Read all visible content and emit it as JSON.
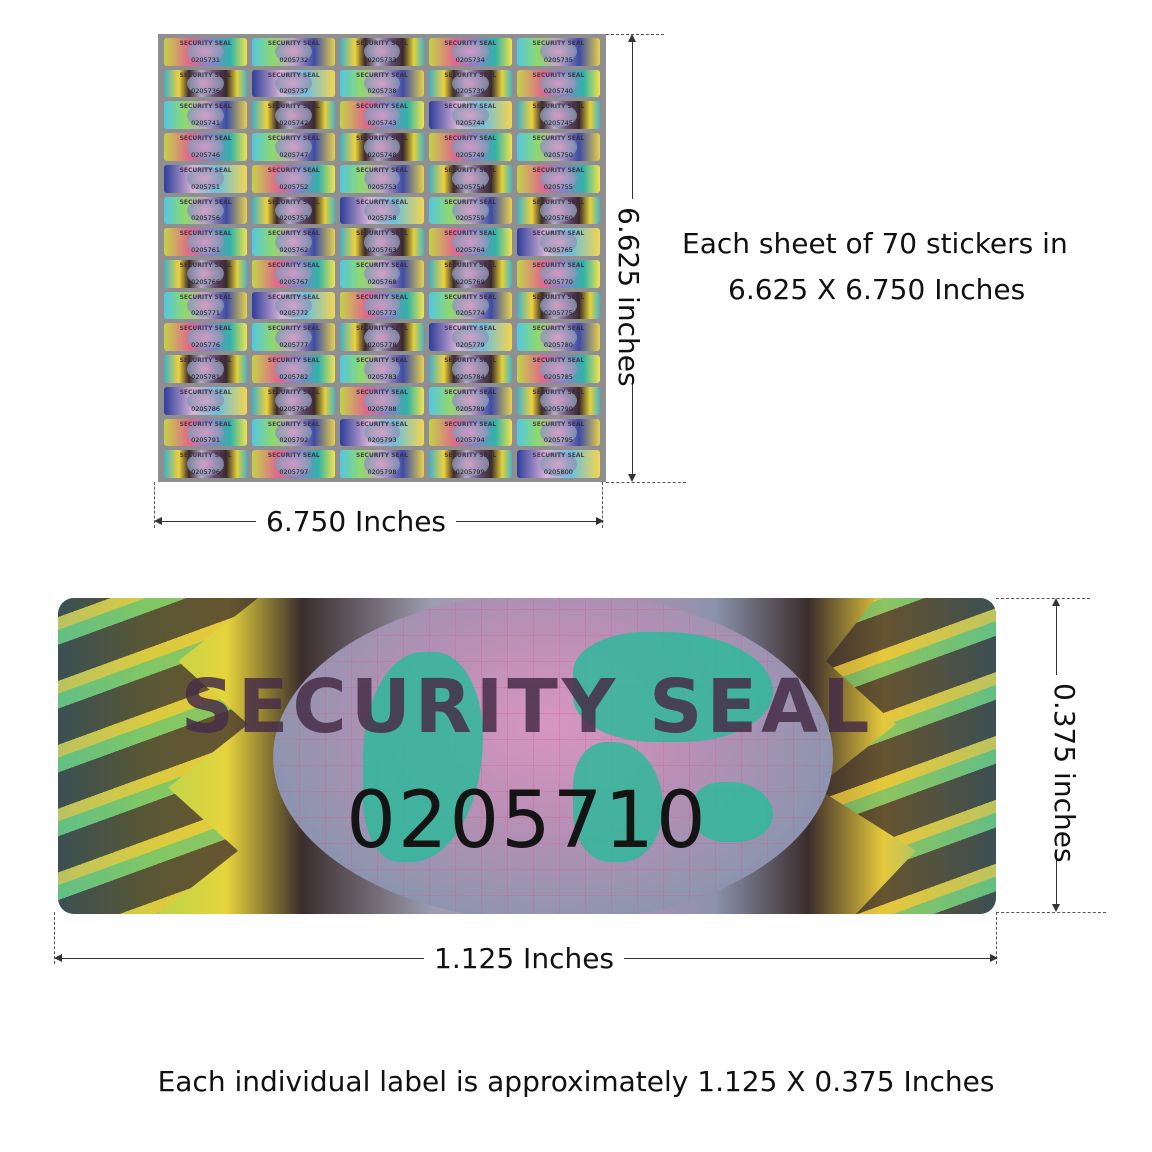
{
  "sheet": {
    "first_serial": 205731,
    "count": 70,
    "columns": 5,
    "seal_text": "SECURITY SEAL",
    "width_label": "6.750 Inches",
    "height_label": "6.625 inches"
  },
  "sheet_caption": {
    "line1": "Each sheet of 70 stickers in",
    "line2": "6.625 X 6.750 Inches"
  },
  "label": {
    "title": "SECURITY SEAL",
    "serial": "0205710",
    "width_label": "1.125 Inches",
    "height_label": "0.375 inches"
  },
  "footer": {
    "caption": "Each individual label is approximately 1.125 X 0.375 Inches"
  },
  "colors": {
    "text": "#111111",
    "sheet_backing": "#8f8f92",
    "seal_brown": "#3b2d2c",
    "seal_yellow": "#e6d33c",
    "seal_teal": "#3ab6c9",
    "seal_pink": "#d896c2"
  }
}
